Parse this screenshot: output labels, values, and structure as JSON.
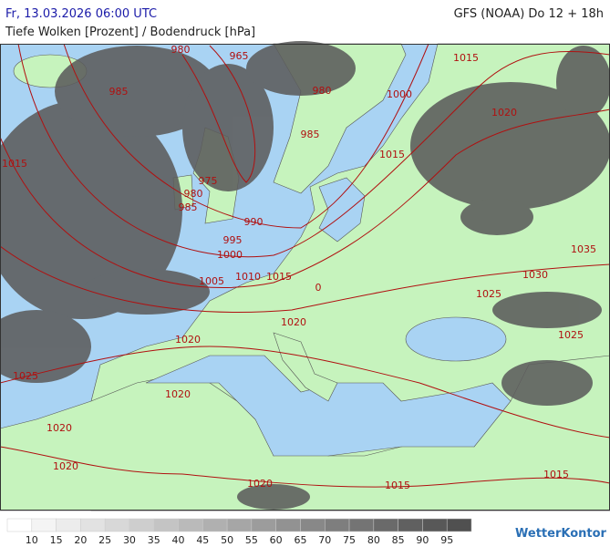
{
  "header": {
    "datetime": "Fr, 13.03.2026 06:00 UTC",
    "model": "GFS (NOAA) Do 12 + 18h",
    "subtitle": "Tiefe Wolken [Prozent] / Bodendruck [hPa]"
  },
  "isobar_labels": [
    980,
    965,
    985,
    980,
    1000,
    1015,
    1020,
    985,
    1015,
    1015,
    975,
    980,
    985,
    990,
    995,
    1000,
    1005,
    1010,
    1015,
    0,
    1035,
    1030,
    1025,
    1020,
    1025,
    1020,
    1020,
    1025,
    1020,
    1020,
    1020,
    1015,
    1015
  ],
  "legend": {
    "ticks": [
      10,
      15,
      20,
      25,
      30,
      35,
      40,
      45,
      50,
      55,
      60,
      65,
      70,
      75,
      80,
      85,
      90,
      95
    ],
    "colors": [
      "#ffffff",
      "#f4f4f4",
      "#ececec",
      "#e2e2e2",
      "#d8d8d8",
      "#cecece",
      "#c4c4c4",
      "#bababa",
      "#b0b0b0",
      "#a6a6a6",
      "#9c9c9c",
      "#929292",
      "#888888",
      "#7e7e7e",
      "#747474",
      "#6a6a6a",
      "#606060",
      "#585858",
      "#505050"
    ]
  },
  "logo": "WetterKontor"
}
